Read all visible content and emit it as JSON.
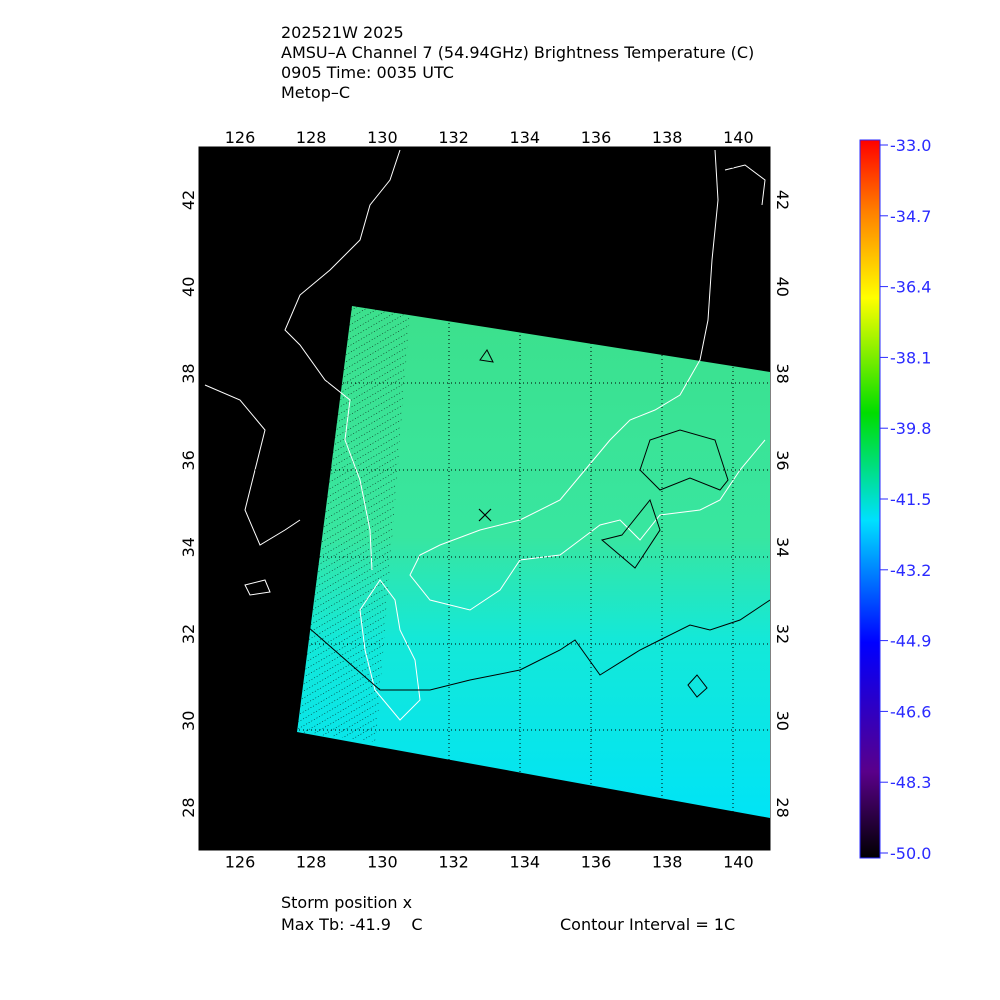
{
  "header": {
    "lines": [
      "202521W 2025",
      "AMSU–A Channel 7 (54.94GHz) Brightness Temperature (C)",
      "0905 Time: 0035 UTC",
      "Metop–C"
    ]
  },
  "map": {
    "lon_ticks": [
      126,
      128,
      130,
      132,
      134,
      136,
      138,
      140
    ],
    "lat_ticks": [
      28,
      30,
      32,
      34,
      36,
      38,
      40,
      42
    ]
  },
  "colorbar": {
    "labels": [
      "-33.0",
      "-34.7",
      "-36.4",
      "-38.1",
      "-39.8",
      "-41.5",
      "-43.2",
      "-44.9",
      "-46.6",
      "-48.3",
      "-50.0"
    ]
  },
  "footer": {
    "storm": "Storm position x",
    "max_tb": "Max Tb: -41.9    C",
    "contour": "Contour Interval = 1C"
  }
}
